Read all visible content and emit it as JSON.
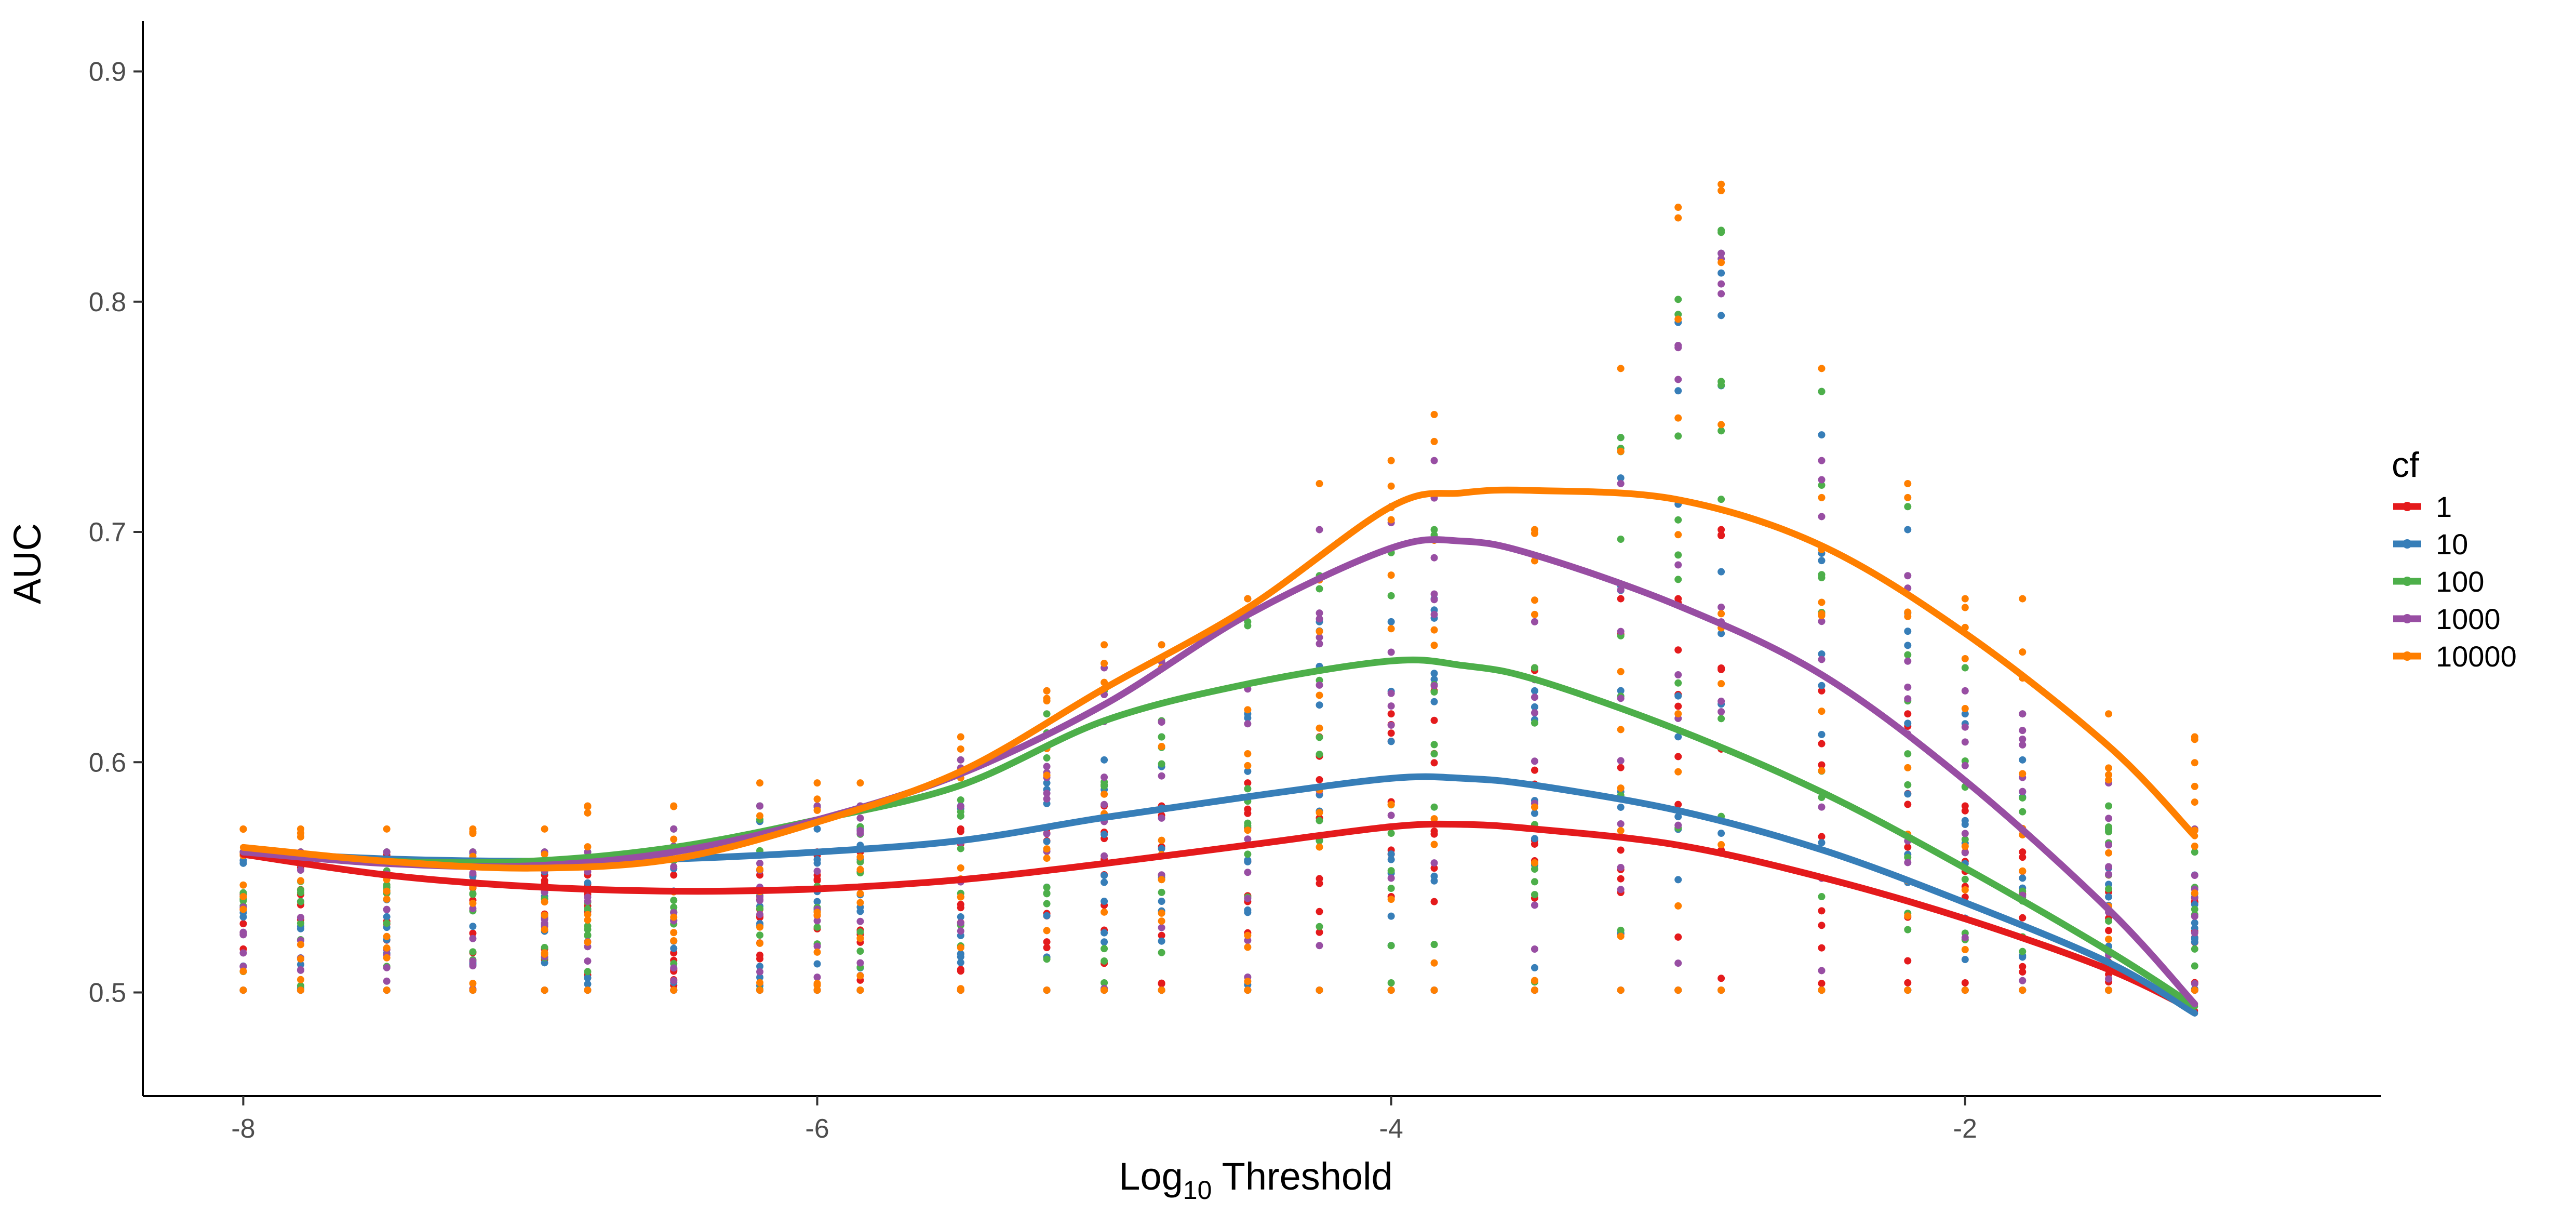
{
  "chart_data": {
    "type": "scatter",
    "title": "",
    "xlabel_main": "Log",
    "xlabel_sub": "10",
    "xlabel_rest": " Threshold",
    "ylabel": "AUC",
    "xlim": [
      -8.35,
      -0.55
    ],
    "ylim": [
      0.455,
      0.922
    ],
    "x_ticks": [
      -8,
      -6,
      -4,
      -2
    ],
    "x_tick_labels": [
      "-8",
      "-6",
      "-4",
      "-2"
    ],
    "y_ticks": [
      0.5,
      0.6,
      0.7,
      0.8,
      0.9
    ],
    "y_tick_labels": [
      "0.5",
      "0.6",
      "0.7",
      "0.8",
      "0.9"
    ],
    "grid": false,
    "legend": {
      "title": "cf",
      "placement": "right"
    },
    "threshold_x": [
      -8,
      -7.8,
      -7.5,
      -7.2,
      -6.95,
      -6.8,
      -6.5,
      -6.2,
      -6.0,
      -5.85,
      -5.5,
      -5.2,
      -5.0,
      -4.8,
      -4.5,
      -4.25,
      -4.0,
      -3.85,
      -3.5,
      -3.2,
      -3.0,
      -2.85,
      -2.5,
      -2.2,
      -2.0,
      -1.8,
      -1.5,
      -1.2
    ],
    "series": [
      {
        "name": "1",
        "color": "#e41a1c",
        "smooth": [
          [
            -8,
            0.56
          ],
          [
            -7.5,
            0.551
          ],
          [
            -7,
            0.546
          ],
          [
            -6.5,
            0.544
          ],
          [
            -6,
            0.545
          ],
          [
            -5.5,
            0.549
          ],
          [
            -5,
            0.556
          ],
          [
            -4.5,
            0.564
          ],
          [
            -4,
            0.572
          ],
          [
            -3.75,
            0.573
          ],
          [
            -3.5,
            0.571
          ],
          [
            -3,
            0.564
          ],
          [
            -2.5,
            0.55
          ],
          [
            -2,
            0.532
          ],
          [
            -1.5,
            0.51
          ],
          [
            -1.2,
            0.492
          ]
        ],
        "max_offset": [
          0.06,
          0.06,
          0.06,
          0.05,
          0.05,
          0.05,
          0.05,
          0.05,
          0.06,
          0.06,
          0.07,
          0.07,
          0.08,
          0.08,
          0.09,
          0.11,
          0.12,
          0.13,
          0.14,
          0.17,
          0.17,
          0.2,
          0.13,
          0.12,
          0.08,
          0.06,
          0.05,
          0.04
        ]
      },
      {
        "name": "10",
        "color": "#377eb8",
        "smooth": [
          [
            -8,
            0.561
          ],
          [
            -7.5,
            0.558
          ],
          [
            -7,
            0.557
          ],
          [
            -6.5,
            0.558
          ],
          [
            -6,
            0.561
          ],
          [
            -5.5,
            0.566
          ],
          [
            -5,
            0.576
          ],
          [
            -4.5,
            0.585
          ],
          [
            -4,
            0.593
          ],
          [
            -3.75,
            0.593
          ],
          [
            -3.5,
            0.59
          ],
          [
            -3,
            0.579
          ],
          [
            -2.5,
            0.562
          ],
          [
            -2,
            0.539
          ],
          [
            -1.5,
            0.513
          ],
          [
            -1.2,
            0.491
          ]
        ],
        "max_offset": [
          0.06,
          0.06,
          0.06,
          0.06,
          0.06,
          0.06,
          0.07,
          0.08,
          0.07,
          0.07,
          0.08,
          0.09,
          0.1,
          0.11,
          0.12,
          0.16,
          0.16,
          0.17,
          0.13,
          0.24,
          0.29,
          0.32,
          0.26,
          0.2,
          0.12,
          0.1,
          0.07,
          0.05
        ]
      },
      {
        "name": "100",
        "color": "#4daf4a",
        "smooth": [
          [
            -8,
            0.561
          ],
          [
            -7.5,
            0.557
          ],
          [
            -7,
            0.557
          ],
          [
            -6.5,
            0.563
          ],
          [
            -6,
            0.575
          ],
          [
            -5.5,
            0.59
          ],
          [
            -5,
            0.618
          ],
          [
            -4.5,
            0.634
          ],
          [
            -4,
            0.644
          ],
          [
            -3.75,
            0.642
          ],
          [
            -3.5,
            0.636
          ],
          [
            -3,
            0.614
          ],
          [
            -2.5,
            0.587
          ],
          [
            -2,
            0.554
          ],
          [
            -1.5,
            0.518
          ],
          [
            -1.2,
            0.494
          ]
        ],
        "max_offset": [
          0.06,
          0.06,
          0.06,
          0.06,
          0.06,
          0.06,
          0.07,
          0.08,
          0.08,
          0.08,
          0.1,
          0.12,
          0.13,
          0.14,
          0.16,
          0.18,
          0.19,
          0.2,
          0.14,
          0.24,
          0.3,
          0.33,
          0.26,
          0.21,
          0.14,
          0.12,
          0.08,
          0.06
        ]
      },
      {
        "name": "1000",
        "color": "#984ea3",
        "smooth": [
          [
            -8,
            0.561
          ],
          [
            -7.5,
            0.556
          ],
          [
            -7,
            0.555
          ],
          [
            -6.5,
            0.561
          ],
          [
            -6,
            0.575
          ],
          [
            -5.5,
            0.595
          ],
          [
            -5,
            0.625
          ],
          [
            -4.5,
            0.664
          ],
          [
            -4,
            0.693
          ],
          [
            -3.75,
            0.696
          ],
          [
            -3.5,
            0.69
          ],
          [
            -3,
            0.668
          ],
          [
            -2.5,
            0.638
          ],
          [
            -2,
            0.592
          ],
          [
            -1.5,
            0.536
          ],
          [
            -1.2,
            0.495
          ]
        ],
        "max_offset": [
          0.06,
          0.06,
          0.06,
          0.06,
          0.06,
          0.06,
          0.07,
          0.08,
          0.08,
          0.08,
          0.1,
          0.13,
          0.14,
          0.15,
          0.17,
          0.2,
          0.21,
          0.23,
          0.16,
          0.22,
          0.28,
          0.32,
          0.23,
          0.18,
          0.13,
          0.12,
          0.09,
          0.07
        ]
      },
      {
        "name": "10000",
        "color": "#ff7f00",
        "smooth": [
          [
            -8,
            0.563
          ],
          [
            -7.5,
            0.557
          ],
          [
            -7,
            0.554
          ],
          [
            -6.5,
            0.558
          ],
          [
            -6,
            0.574
          ],
          [
            -5.5,
            0.596
          ],
          [
            -5,
            0.632
          ],
          [
            -4.5,
            0.667
          ],
          [
            -4,
            0.711
          ],
          [
            -3.75,
            0.717
          ],
          [
            -3.5,
            0.718
          ],
          [
            -3,
            0.714
          ],
          [
            -2.5,
            0.694
          ],
          [
            -2,
            0.656
          ],
          [
            -1.5,
            0.607
          ],
          [
            -1.2,
            0.568
          ]
        ],
        "max_offset": [
          0.07,
          0.07,
          0.07,
          0.07,
          0.07,
          0.08,
          0.08,
          0.09,
          0.09,
          0.09,
          0.11,
          0.13,
          0.15,
          0.15,
          0.17,
          0.22,
          0.23,
          0.25,
          0.2,
          0.27,
          0.34,
          0.35,
          0.27,
          0.22,
          0.17,
          0.17,
          0.12,
          0.11
        ]
      }
    ]
  }
}
